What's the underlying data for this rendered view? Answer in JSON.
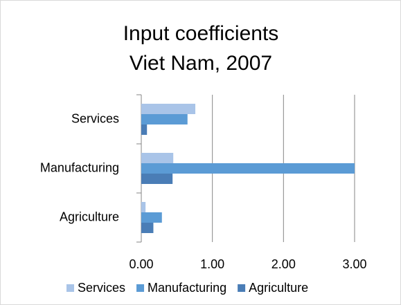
{
  "chart_data": {
    "type": "bar",
    "orientation": "horizontal",
    "title": [
      "Input coefficients",
      "Viet Nam, 2007"
    ],
    "categories": [
      "Services",
      "Manufacturing",
      "Agriculture"
    ],
    "series": [
      {
        "name": "Services",
        "color": "#a9c4e8",
        "values": [
          0.76,
          0.45,
          0.06
        ]
      },
      {
        "name": "Manufacturing",
        "color": "#5b9bd5",
        "values": [
          0.65,
          3.0,
          0.29
        ]
      },
      {
        "name": "Agriculture",
        "color": "#4a7db6",
        "values": [
          0.08,
          0.44,
          0.17
        ]
      }
    ],
    "xlim": [
      0,
      3
    ],
    "xticks": [
      {
        "value": 0,
        "label": "0.00"
      },
      {
        "value": 1,
        "label": "1.00"
      },
      {
        "value": 2,
        "label": "2.00"
      },
      {
        "value": 3,
        "label": "3.00"
      }
    ],
    "grid": true,
    "legend": "bottom"
  }
}
